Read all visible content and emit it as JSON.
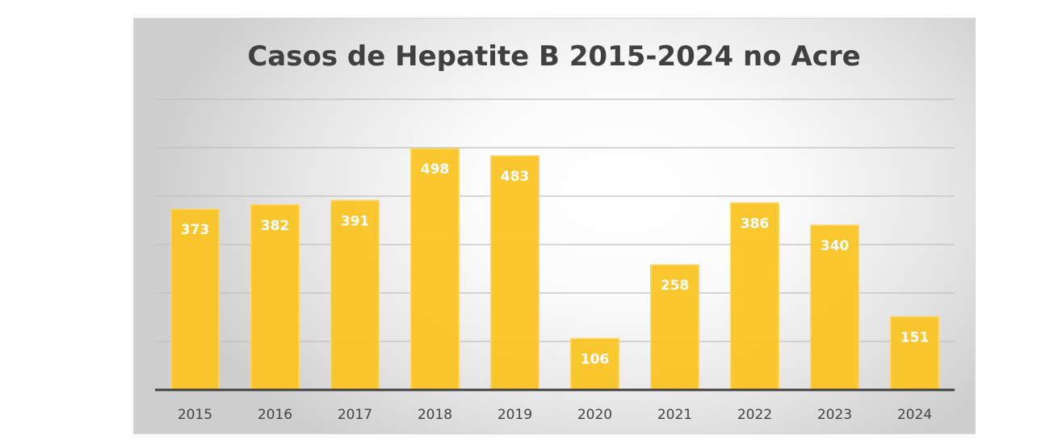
{
  "chart_data": {
    "type": "bar",
    "title": "Casos de Hepatite B 2015-2024 no Acre",
    "xlabel": "",
    "ylabel": "",
    "categories": [
      "2015",
      "2016",
      "2017",
      "2018",
      "2019",
      "2020",
      "2021",
      "2022",
      "2023",
      "2024"
    ],
    "values": [
      373,
      382,
      391,
      498,
      483,
      106,
      258,
      386,
      340,
      151
    ],
    "data_labels": [
      "373",
      "382",
      "391",
      "498",
      "483",
      "106",
      "258",
      "386",
      "340",
      "151"
    ],
    "ylim": [
      0,
      600
    ],
    "ytick_step": 100,
    "ytick_labels_visible": false,
    "grid": true,
    "legend": "none",
    "colors": {
      "bar": "#FBC424",
      "bar_edge": "#FDD66A",
      "title": "#404040",
      "tick": "#444444",
      "gridline": "#BFBFBF",
      "axis": "#404040",
      "data_label": "#FFFFFF"
    }
  }
}
